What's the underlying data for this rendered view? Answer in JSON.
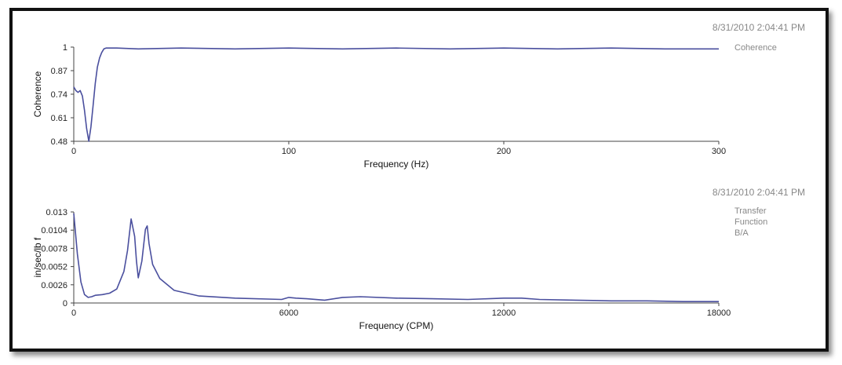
{
  "colors": {
    "line": "#4a4f9e",
    "axis": "#444444",
    "frame": "#111111"
  },
  "chart_data": [
    {
      "type": "line",
      "timestamp": "8/31/2010 2:04:41 PM",
      "legend": [
        "Coherence"
      ],
      "xlabel": "Frequency (Hz)",
      "ylabel": "Coherence",
      "xlim": [
        0,
        300
      ],
      "ylim": [
        0.48,
        1.0
      ],
      "xticks": [
        0,
        100,
        200,
        300
      ],
      "xtick_labels": [
        "0",
        "100",
        "200",
        "300"
      ],
      "yticks": [
        0.48,
        0.61,
        0.74,
        0.87,
        1.0
      ],
      "ytick_labels": [
        "0.48",
        "0.61",
        "0.74",
        "0.87",
        "1"
      ],
      "series": [
        {
          "x": [
            0,
            1,
            2,
            3,
            4,
            5,
            6,
            7,
            8,
            9,
            10,
            11,
            12,
            13,
            14,
            15,
            17,
            20,
            30,
            50,
            75,
            100,
            125,
            150,
            175,
            200,
            225,
            250,
            275,
            300
          ],
          "values": [
            0.78,
            0.76,
            0.75,
            0.76,
            0.73,
            0.65,
            0.55,
            0.48,
            0.56,
            0.68,
            0.8,
            0.89,
            0.94,
            0.97,
            0.99,
            0.995,
            0.995,
            0.995,
            0.99,
            0.995,
            0.99,
            0.995,
            0.99,
            0.995,
            0.99,
            0.995,
            0.99,
            0.995,
            0.99,
            0.99
          ]
        }
      ]
    },
    {
      "type": "line",
      "timestamp": "8/31/2010 2:04:41 PM",
      "legend": [
        "Transfer",
        "Function",
        "B/A"
      ],
      "xlabel": "Frequency (CPM)",
      "ylabel": "in/sec/lb f",
      "xlim": [
        0,
        18000
      ],
      "ylim": [
        0,
        0.013
      ],
      "xticks": [
        0,
        6000,
        12000,
        18000
      ],
      "xtick_labels": [
        "0",
        "6000",
        "12000",
        "18000"
      ],
      "yticks": [
        0,
        0.0026,
        0.0052,
        0.0078,
        0.0104,
        0.013
      ],
      "ytick_labels": [
        "0",
        "0.0026",
        "0.0052",
        "0.0078",
        "0.0104",
        "0.013"
      ],
      "series": [
        {
          "x": [
            0,
            100,
            200,
            300,
            400,
            500,
            600,
            800,
            1000,
            1200,
            1400,
            1500,
            1600,
            1700,
            1750,
            1800,
            1900,
            2000,
            2050,
            2100,
            2200,
            2400,
            2800,
            3500,
            4500,
            5800,
            6000,
            6200,
            6500,
            7000,
            7500,
            8000,
            9000,
            10000,
            11000,
            12000,
            12500,
            13000,
            14000,
            15000,
            16000,
            17000,
            18000
          ],
          "values": [
            0.0128,
            0.007,
            0.003,
            0.0012,
            0.0008,
            0.0009,
            0.0011,
            0.0012,
            0.0014,
            0.002,
            0.0045,
            0.0075,
            0.012,
            0.0095,
            0.006,
            0.0036,
            0.006,
            0.0105,
            0.011,
            0.0085,
            0.0055,
            0.0035,
            0.0018,
            0.001,
            0.0007,
            0.0005,
            0.0008,
            0.0007,
            0.0006,
            0.0004,
            0.0008,
            0.0009,
            0.0007,
            0.0006,
            0.0005,
            0.0007,
            0.0007,
            0.0005,
            0.0004,
            0.0003,
            0.0003,
            0.0002,
            0.0002
          ]
        }
      ]
    }
  ]
}
